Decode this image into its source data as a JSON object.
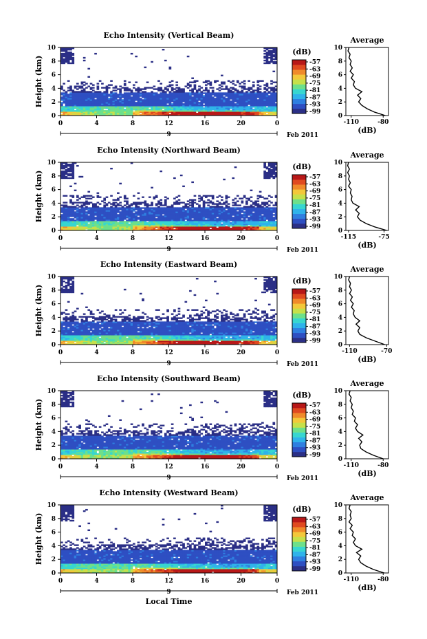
{
  "x_label": "Local Time",
  "date_label": "Feb 2011",
  "day_marker": "9",
  "x_ticks": [
    "0",
    "4",
    "8",
    "12",
    "16",
    "20",
    "0"
  ],
  "y_ticks": [
    "0",
    "2",
    "4",
    "6",
    "8",
    "10"
  ],
  "y_label": "Height (km)",
  "unit_label": "(dB)",
  "colorbar_ticks": [
    "-57",
    "-63",
    "-69",
    "-75",
    "-81",
    "-87",
    "-93",
    "-99"
  ],
  "colorbar_colors": [
    "#2b2f86",
    "#2e4fc2",
    "#2f7fe0",
    "#2fb3ea",
    "#37d6d0",
    "#6de08a",
    "#c6e04a",
    "#f3c83a",
    "#f08a2a",
    "#e04a20",
    "#b81818"
  ],
  "average_title": "Average",
  "average_xlabel": "(dB)",
  "chart_data": [
    {
      "type": "heatmap",
      "title": "Echo Intensity (Vertical Beam)",
      "x_range": [
        0,
        24
      ],
      "y_range": [
        0,
        10
      ],
      "color_range": [
        -99,
        -57
      ],
      "average": {
        "type": "line",
        "title": "Average",
        "xlabel": "(dB)",
        "x_ticks": [
          "-110",
          "-80"
        ],
        "xlim": [
          -115,
          -75
        ],
        "height_km": [
          0,
          0.5,
          1,
          1.5,
          2,
          2.5,
          3,
          3.5,
          4,
          4.5,
          5,
          5.5,
          6,
          6.5,
          7,
          7.5,
          8,
          8.5,
          9,
          9.5,
          10
        ],
        "values": [
          -78,
          -88,
          -95,
          -100,
          -103,
          -101,
          -104,
          -100,
          -106,
          -108,
          -107,
          -110,
          -108,
          -111,
          -109,
          -111,
          -110,
          -112,
          -111,
          -113,
          -112
        ]
      }
    },
    {
      "type": "heatmap",
      "title": "Echo Intensity (Northward Beam)",
      "x_range": [
        0,
        24
      ],
      "y_range": [
        0,
        10
      ],
      "color_range": [
        -99,
        -57
      ],
      "average": {
        "type": "line",
        "title": "Average",
        "xlabel": "(dB)",
        "x_ticks": [
          "-115",
          "-75"
        ],
        "xlim": [
          -118,
          -70
        ],
        "height_km": [
          0,
          0.5,
          1,
          1.5,
          2,
          2.5,
          3,
          3.5,
          4,
          4.5,
          5,
          5.5,
          6,
          6.5,
          7,
          7.5,
          8,
          8.5,
          9,
          9.5,
          10
        ],
        "values": [
          -72,
          -85,
          -95,
          -102,
          -105,
          -103,
          -107,
          -103,
          -110,
          -112,
          -111,
          -113,
          -112,
          -115,
          -113,
          -115,
          -114,
          -116,
          -114,
          -116,
          -115
        ]
      }
    },
    {
      "type": "heatmap",
      "title": "Echo Intensity (Eastward Beam)",
      "x_range": [
        0,
        24
      ],
      "y_range": [
        0,
        10
      ],
      "color_range": [
        -99,
        -57
      ],
      "average": {
        "type": "line",
        "title": "Average",
        "xlabel": "(dB)",
        "x_ticks": [
          "-110",
          "-70"
        ],
        "xlim": [
          -114,
          -68
        ],
        "height_km": [
          0,
          0.5,
          1,
          1.5,
          2,
          2.5,
          3,
          3.5,
          4,
          4.5,
          5,
          5.5,
          6,
          6.5,
          7,
          7.5,
          8,
          8.5,
          9,
          9.5,
          10
        ],
        "values": [
          -72,
          -82,
          -92,
          -99,
          -101,
          -99,
          -103,
          -99,
          -104,
          -106,
          -105,
          -108,
          -106,
          -109,
          -107,
          -110,
          -108,
          -110,
          -109,
          -111,
          -110
        ]
      }
    },
    {
      "type": "heatmap",
      "title": "Echo Intensity (Southward Beam)",
      "x_range": [
        0,
        24
      ],
      "y_range": [
        0,
        10
      ],
      "color_range": [
        -99,
        -57
      ],
      "average": {
        "type": "line",
        "title": "Average",
        "xlabel": "(dB)",
        "x_ticks": [
          "-110",
          "-80"
        ],
        "xlim": [
          -115,
          -75
        ],
        "height_km": [
          0,
          0.5,
          1,
          1.5,
          2,
          2.5,
          3,
          3.5,
          4,
          4.5,
          5,
          5.5,
          6,
          6.5,
          7,
          7.5,
          8,
          8.5,
          9,
          9.5,
          10
        ],
        "values": [
          -80,
          -89,
          -96,
          -101,
          -102,
          -100,
          -103,
          -99,
          -104,
          -106,
          -104,
          -107,
          -106,
          -109,
          -108,
          -110,
          -109,
          -111,
          -110,
          -112,
          -111
        ]
      }
    },
    {
      "type": "heatmap",
      "title": "Echo Intensity (Westward Beam)",
      "x_range": [
        0,
        24
      ],
      "y_range": [
        0,
        10
      ],
      "color_range": [
        -99,
        -57
      ],
      "average": {
        "type": "line",
        "title": "Average",
        "xlabel": "(dB)",
        "x_ticks": [
          "-110",
          "-80"
        ],
        "xlim": [
          -115,
          -75
        ],
        "height_km": [
          0,
          0.5,
          1,
          1.5,
          2,
          2.5,
          3,
          3.5,
          4,
          4.5,
          5,
          5.5,
          6,
          6.5,
          7,
          7.5,
          8,
          8.5,
          9,
          9.5,
          10
        ],
        "values": [
          -79,
          -89,
          -96,
          -101,
          -103,
          -101,
          -105,
          -100,
          -106,
          -108,
          -106,
          -109,
          -108,
          -111,
          -109,
          -112,
          -110,
          -111,
          -110,
          -112,
          -111
        ]
      }
    }
  ]
}
